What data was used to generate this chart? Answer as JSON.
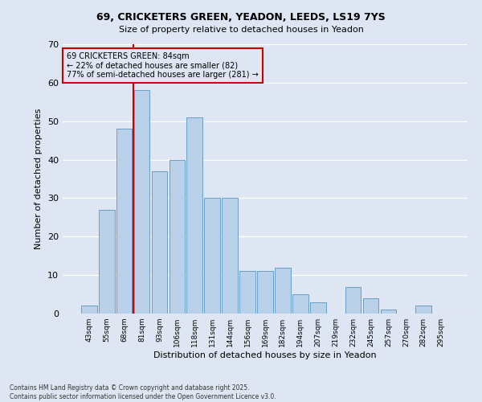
{
  "title1": "69, CRICKETERS GREEN, YEADON, LEEDS, LS19 7YS",
  "title2": "Size of property relative to detached houses in Yeadon",
  "xlabel": "Distribution of detached houses by size in Yeadon",
  "ylabel": "Number of detached properties",
  "categories": [
    "43sqm",
    "55sqm",
    "68sqm",
    "81sqm",
    "93sqm",
    "106sqm",
    "118sqm",
    "131sqm",
    "144sqm",
    "156sqm",
    "169sqm",
    "182sqm",
    "194sqm",
    "207sqm",
    "219sqm",
    "232sqm",
    "245sqm",
    "257sqm",
    "270sqm",
    "282sqm",
    "295sqm"
  ],
  "values": [
    2,
    27,
    48,
    58,
    37,
    40,
    51,
    30,
    30,
    11,
    11,
    12,
    5,
    3,
    0,
    7,
    4,
    1,
    0,
    2,
    0
  ],
  "bar_color": "#b8d0e8",
  "bar_edge_color": "#6a9fc8",
  "background_color": "#dde6f2",
  "grid_color": "#ffffff",
  "property_label": "69 CRICKETERS GREEN: 84sqm",
  "annotation_line1": "← 22% of detached houses are smaller (82)",
  "annotation_line2": "77% of semi-detached houses are larger (281) →",
  "vline_x_index": 3,
  "vline_color": "#cc0000",
  "annotation_box_edge_color": "#cc0000",
  "ylim": [
    0,
    70
  ],
  "yticks": [
    0,
    10,
    20,
    30,
    40,
    50,
    60,
    70
  ],
  "footnote1": "Contains HM Land Registry data © Crown copyright and database right 2025.",
  "footnote2": "Contains public sector information licensed under the Open Government Licence v3.0."
}
